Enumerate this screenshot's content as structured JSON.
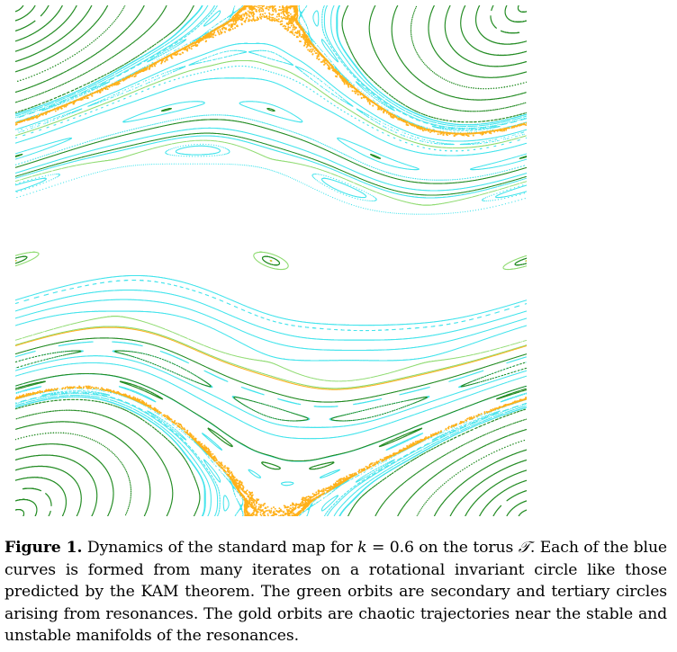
{
  "figure": {
    "label": "Figure 1.",
    "caption_parts": {
      "p1": " Dynamics of the standard map for ",
      "k_symbol": "k",
      "p2": " = 0.6 on the torus ",
      "torus_symbol": "𝒯",
      "p3": ". Each of the blue curves is formed from many iterates on a rotational invariant circle like those predicted by the KAM theorem. The green orbits are secondary and tertiary circles arising from resonances. The gold orbits are chaotic trajectories near the stable and unstable manifolds of the resonances."
    },
    "parameter_k": 0.6
  },
  "colors": {
    "rotational_circles": "#44E4EC",
    "secondary_circles": "#228B22",
    "tertiary_circles": "#8EDB70",
    "chaotic_orbits": "#FFB11B",
    "background": "#ffffff"
  }
}
